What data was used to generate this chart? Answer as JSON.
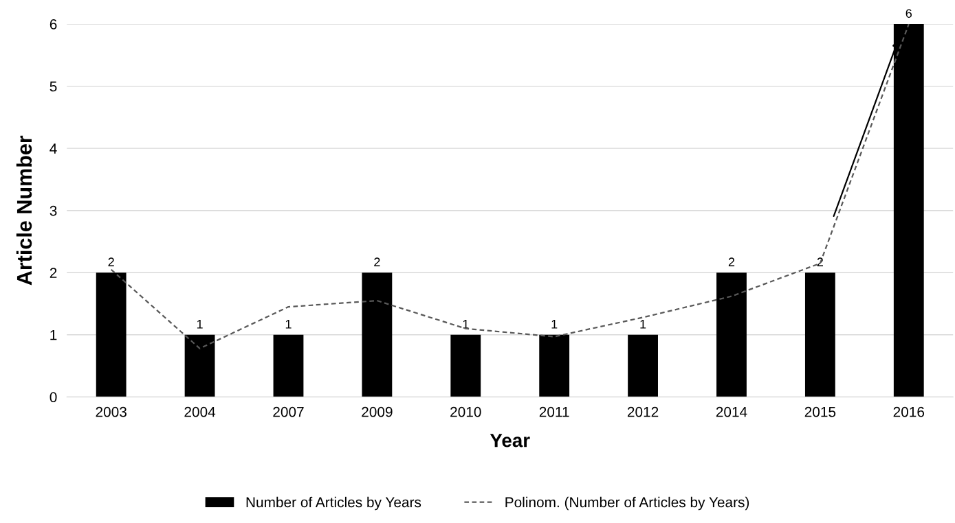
{
  "chart_data": {
    "type": "bar",
    "xlabel": "Year",
    "ylabel": "Article Number",
    "categories": [
      "2003",
      "2004",
      "2007",
      "2009",
      "2010",
      "2011",
      "2012",
      "2014",
      "2015",
      "2016"
    ],
    "series": [
      {
        "name": "Number of Articles by Years",
        "color": "#000000",
        "values": [
          2,
          1,
          1,
          2,
          1,
          1,
          1,
          2,
          2,
          6
        ],
        "value_labels": [
          "2",
          "1",
          "1",
          "2",
          "1",
          "1",
          "1",
          "2",
          "2",
          "6"
        ]
      },
      {
        "name": "Polinom. (Number of Articles by Years)",
        "type": "line",
        "color": "#595959",
        "line_style": "dashed",
        "marker": "none",
        "values": [
          2.05,
          0.78,
          1.45,
          1.55,
          1.1,
          0.97,
          1.28,
          1.62,
          2.15,
          6.0
        ]
      }
    ],
    "ylim": [
      0,
      6
    ],
    "yticks": [
      0,
      1,
      2,
      3,
      4,
      5,
      6
    ],
    "grid": "y",
    "legend": "bottom"
  }
}
